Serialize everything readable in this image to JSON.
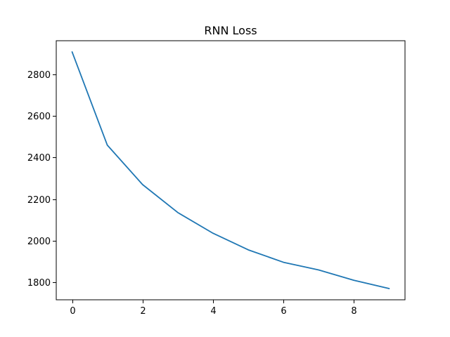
{
  "chart_data": {
    "type": "line",
    "title": "RNN Loss",
    "xlabel": "",
    "ylabel": "",
    "x": [
      0,
      1,
      2,
      3,
      4,
      5,
      6,
      7,
      8,
      9
    ],
    "series": [
      {
        "values": [
          2910,
          2460,
          2270,
          2135,
          2035,
          1955,
          1895,
          1858,
          1808,
          1768
        ],
        "color": "#1f77b4"
      }
    ],
    "xlim": [
      -0.45,
      9.45
    ],
    "ylim": [
      1714,
      2964
    ],
    "xticks": [
      0,
      2,
      4,
      6,
      8
    ],
    "yticks": [
      1800,
      2000,
      2200,
      2400,
      2600,
      2800
    ],
    "grid": false,
    "legend": "none"
  }
}
